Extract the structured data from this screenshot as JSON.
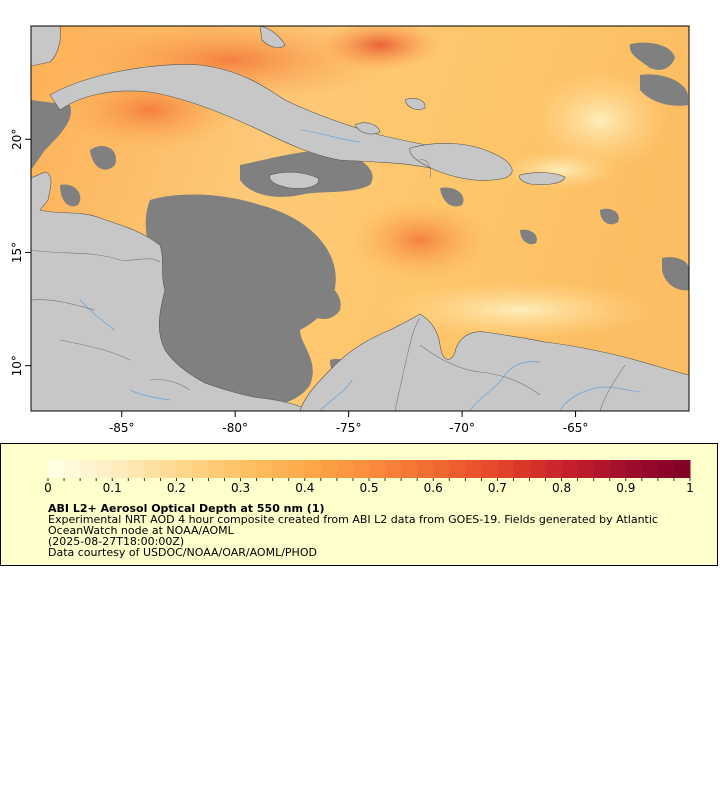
{
  "map": {
    "x_ticks": [
      {
        "lon": -85,
        "label": "-85°"
      },
      {
        "lon": -80,
        "label": "-80°"
      },
      {
        "lon": -75,
        "label": "-75°"
      },
      {
        "lon": -70,
        "label": "-70°"
      },
      {
        "lon": -65,
        "label": "-65°"
      }
    ],
    "y_ticks": [
      {
        "lat": 20,
        "label": "20°"
      },
      {
        "lat": 15,
        "label": "15°"
      },
      {
        "lat": 10,
        "label": "10°"
      }
    ],
    "lon_range": [
      -89,
      -60
    ],
    "lat_range": [
      8,
      25
    ],
    "colors": {
      "land": "#c7c7c7",
      "no_data": "#808080",
      "coast": "#555555",
      "rivers": "#6fa6d6",
      "borders": "#777777"
    }
  },
  "legend": {
    "colorbar": {
      "min": 0,
      "max": 1,
      "tick_labels": [
        "0",
        "0.1",
        "0.2",
        "0.3",
        "0.4",
        "0.5",
        "0.6",
        "0.7",
        "0.8",
        "0.9",
        "1"
      ],
      "colors": [
        "#ffffe6",
        "#ffefc2",
        "#fed98f",
        "#fec266",
        "#fda949",
        "#fb8c3c",
        "#f26a31",
        "#e4472a",
        "#c9222a",
        "#a10d2b",
        "#7f0028"
      ]
    },
    "title": "ABI L2+ Aerosol Optical Depth at 550 nm (1)",
    "description": "Experimental NRT AOD 4 hour composite created from ABI L2 data from GOES-19. Fields generated by Atlantic OceanWatch node at NOAA/AOML",
    "time": "(2025-08-27T18:00:00Z)",
    "credit": "Data courtesy of USDOC/NOAA/OAR/AOML/PHOD"
  }
}
